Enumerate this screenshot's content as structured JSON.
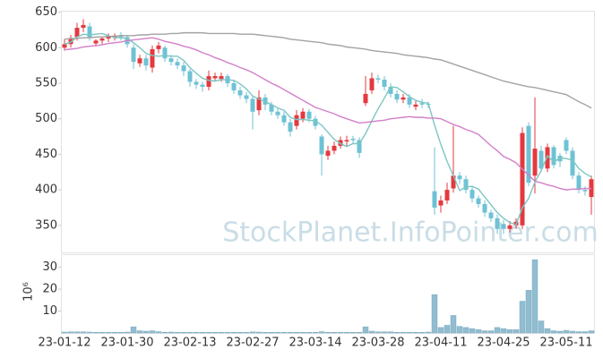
{
  "chart_data": [
    {
      "type": "candlestick",
      "watermark": "StockPlanet.InfoPointer.com",
      "up_color": "#e3393f",
      "down_color": "#6ec2d4",
      "open": [
        600,
        605,
        615,
        628,
        630,
        606,
        610,
        613,
        614,
        618,
        615,
        600,
        578,
        585,
        572,
        598,
        600,
        585,
        580,
        575,
        567,
        552,
        548,
        545,
        557,
        556,
        560,
        550,
        540,
        533,
        528,
        512,
        530,
        520,
        510,
        505,
        495,
        490,
        500,
        510,
        500,
        475,
        448,
        455,
        462,
        468,
        472,
        470,
        522,
        540,
        557,
        555,
        545,
        535,
        527,
        530,
        517,
        522,
        521,
        398,
        378,
        385,
        402,
        420,
        415,
        400,
        388,
        380,
        368,
        360,
        352,
        345,
        350,
        350,
        490,
        420,
        455,
        430,
        460,
        448,
        470,
        455,
        420,
        400,
        390
      ],
      "high": [
        612,
        618,
        635,
        640,
        635,
        612,
        616,
        620,
        620,
        622,
        618,
        605,
        590,
        590,
        603,
        608,
        603,
        590,
        585,
        580,
        570,
        556,
        552,
        568,
        565,
        565,
        563,
        555,
        545,
        538,
        532,
        540,
        535,
        524,
        515,
        510,
        500,
        512,
        515,
        514,
        504,
        478,
        462,
        468,
        475,
        476,
        476,
        474,
        560,
        565,
        562,
        560,
        550,
        540,
        535,
        535,
        525,
        528,
        524,
        460,
        392,
        410,
        490,
        425,
        420,
        405,
        392,
        385,
        372,
        365,
        358,
        356,
        360,
        488,
        495,
        530,
        462,
        465,
        463,
        452,
        474,
        460,
        425,
        405,
        420
      ],
      "low": [
        596,
        600,
        610,
        622,
        610,
        602,
        605,
        608,
        610,
        610,
        600,
        570,
        573,
        568,
        565,
        592,
        580,
        575,
        570,
        560,
        545,
        542,
        538,
        540,
        553,
        552,
        545,
        535,
        528,
        522,
        485,
        505,
        512,
        505,
        500,
        490,
        475,
        485,
        495,
        495,
        485,
        420,
        442,
        450,
        458,
        462,
        465,
        445,
        518,
        535,
        550,
        540,
        530,
        522,
        522,
        515,
        512,
        515,
        515,
        365,
        368,
        380,
        396,
        408,
        395,
        382,
        375,
        362,
        355,
        338,
        338,
        340,
        345,
        345,
        405,
        395,
        425,
        425,
        430,
        432,
        450,
        415,
        395,
        392,
        365
      ],
      "close": [
        605,
        612,
        628,
        632,
        615,
        610,
        613,
        616,
        617,
        615,
        605,
        580,
        585,
        575,
        598,
        603,
        585,
        580,
        575,
        567,
        552,
        548,
        545,
        560,
        560,
        560,
        550,
        540,
        533,
        528,
        510,
        530,
        520,
        510,
        505,
        495,
        482,
        505,
        510,
        500,
        490,
        450,
        455,
        462,
        470,
        470,
        470,
        452,
        535,
        557,
        555,
        545,
        535,
        527,
        530,
        520,
        520,
        520,
        520,
        375,
        385,
        400,
        420,
        415,
        400,
        388,
        380,
        368,
        360,
        345,
        345,
        350,
        355,
        480,
        410,
        458,
        430,
        460,
        435,
        440,
        455,
        420,
        400,
        398,
        415
      ],
      "series": [
        {
          "color": "#7cc6c4",
          "values": [
            605,
            608,
            615,
            619,
            618,
            619,
            620,
            617,
            614,
            614,
            613,
            607,
            600,
            592,
            589,
            588,
            589,
            588,
            588,
            582,
            572,
            564,
            557,
            554,
            553,
            555,
            555,
            554,
            549,
            542,
            532,
            528,
            524,
            520,
            515,
            512,
            502,
            499,
            499,
            498,
            497,
            491,
            481,
            471,
            465,
            461,
            465,
            465,
            479,
            497,
            514,
            529,
            545,
            544,
            538,
            531,
            526,
            523,
            522,
            491,
            464,
            440,
            420,
            399,
            404,
            405,
            401,
            390,
            379,
            368,
            360,
            354,
            351,
            375,
            388,
            411,
            427,
            448,
            439,
            445,
            444,
            442,
            430,
            423,
            418
          ]
        },
        {
          "color": "#d27fc9",
          "values": [
            597,
            598,
            599,
            601,
            602,
            603,
            604,
            606,
            607,
            608,
            610,
            611,
            612,
            613,
            614,
            612,
            609,
            607,
            605,
            602,
            600,
            597,
            593,
            590,
            586,
            583,
            579,
            576,
            572,
            569,
            565,
            560,
            555,
            550,
            546,
            541,
            536,
            531,
            526,
            521,
            516,
            513,
            510,
            507,
            503,
            500,
            497,
            494,
            495,
            496,
            497,
            498,
            500,
            501,
            502,
            503,
            502,
            502,
            501,
            501,
            500,
            496,
            492,
            489,
            485,
            482,
            478,
            470,
            462,
            455,
            447,
            443,
            438,
            429,
            421,
            412,
            410,
            407,
            405,
            402,
            400,
            401,
            401,
            402,
            402
          ]
        },
        {
          "color": "#a3a3a3",
          "values": [
            612,
            613,
            613,
            614,
            614,
            615,
            615,
            616,
            616,
            617,
            617,
            617,
            618,
            618,
            619,
            619,
            619,
            620,
            620,
            621,
            621,
            621,
            621,
            620,
            620,
            620,
            620,
            620,
            619,
            619,
            619,
            618,
            617,
            616,
            615,
            614,
            612,
            611,
            610,
            609,
            608,
            607,
            605,
            604,
            603,
            601,
            600,
            599,
            598,
            596,
            595,
            594,
            593,
            592,
            590,
            589,
            588,
            587,
            586,
            584,
            583,
            580,
            577,
            574,
            571,
            568,
            565,
            562,
            559,
            556,
            553,
            551,
            549,
            547,
            545,
            544,
            542,
            540,
            538,
            536,
            534,
            529,
            524,
            520,
            515
          ]
        }
      ],
      "ylim": [
        312,
        652
      ],
      "yticks": [
        350,
        400,
        450,
        500,
        550,
        600,
        650
      ]
    },
    {
      "type": "bar",
      "ylabel": "10⁶",
      "color": "#92bdd0",
      "categories": [
        "23-01-12",
        null,
        null,
        null,
        null,
        null,
        null,
        null,
        null,
        null,
        "23-01-30",
        null,
        null,
        null,
        null,
        null,
        null,
        null,
        null,
        null,
        "23-02-13",
        null,
        null,
        null,
        null,
        null,
        null,
        null,
        null,
        null,
        "23-02-27",
        null,
        null,
        null,
        null,
        null,
        null,
        null,
        null,
        null,
        "23-03-14",
        null,
        null,
        null,
        null,
        null,
        null,
        null,
        null,
        null,
        "23-03-28",
        null,
        null,
        null,
        null,
        null,
        null,
        null,
        null,
        null,
        "23-04-11",
        null,
        null,
        null,
        null,
        null,
        null,
        null,
        null,
        null,
        "23-04-25",
        null,
        null,
        null,
        null,
        null,
        null,
        null,
        null,
        null,
        "23-05-11",
        null,
        null,
        null,
        null
      ],
      "values": [
        0.4,
        0.5,
        0.5,
        0.5,
        0.4,
        0.3,
        0.3,
        0.3,
        0.3,
        0.3,
        0.4,
        2.8,
        1,
        0.8,
        1,
        0.6,
        0.3,
        0.4,
        0.3,
        0.3,
        0.3,
        0.3,
        0.3,
        0.3,
        0.3,
        0.3,
        0.3,
        0.3,
        0.3,
        0.3,
        0.5,
        0.4,
        0.3,
        0.3,
        0.3,
        0.3,
        0.3,
        0.3,
        0.3,
        0.3,
        0.3,
        0.6,
        0.3,
        0.3,
        0.3,
        0.3,
        0.3,
        0.3,
        2.8,
        0.8,
        0.5,
        0.5,
        0.5,
        0.3,
        0.3,
        0.3,
        0.3,
        0.3,
        0.4,
        17.5,
        2.5,
        3.5,
        8,
        3,
        2.5,
        2,
        1.5,
        1,
        1,
        2.5,
        2,
        1.5,
        1.5,
        14.5,
        19.5,
        33.5,
        5.5,
        2,
        1,
        0.8,
        1.2,
        0.8,
        0.6,
        0.6,
        1
      ],
      "ylim": [
        0,
        36
      ],
      "yticks": [
        10,
        20,
        30
      ]
    }
  ]
}
